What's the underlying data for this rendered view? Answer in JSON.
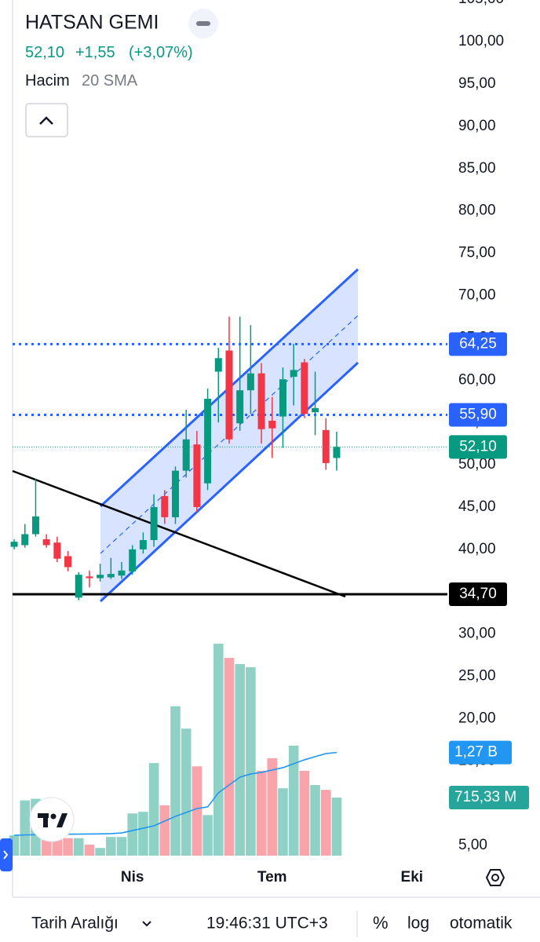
{
  "header": {
    "title": "HATSAN GEMI",
    "price": "52,10",
    "change": "+1,55",
    "change_pct": "(+3,07%)",
    "indicator": "Hacim",
    "indicator_param": "20 SMA"
  },
  "toolbar": {
    "range": "Tarih Aralığı",
    "time": "19:46:31 UTC+3",
    "percent": "%",
    "log": "log",
    "auto": "otomatik"
  },
  "chart_data": {
    "type": "candlestick",
    "up_color": "#089981",
    "down_color": "#f23645",
    "open": [
      40.3,
      40.5,
      41.8,
      41.2,
      40.8,
      39.2,
      34.3,
      36.8,
      36.6,
      36.7,
      36.9,
      37.4,
      40.0,
      41.1,
      46.3,
      43.8,
      49.3,
      52.4,
      47.8,
      61.0,
      63.5,
      54.9,
      58.8,
      60.8,
      55.2,
      55.7,
      60.4,
      62.1,
      56.2,
      54.1,
      50.8
    ],
    "high": [
      41.2,
      43.0,
      48.3,
      41.8,
      41.5,
      39.8,
      37.3,
      37.5,
      38.3,
      39.0,
      38.5,
      40.5,
      42.0,
      46.5,
      47.0,
      49.8,
      56.5,
      54.0,
      59.0,
      63.8,
      67.5,
      67.5,
      66.5,
      62.0,
      58.0,
      61.5,
      64.3,
      62.5,
      61.0,
      55.5,
      53.9
    ],
    "low": [
      40.0,
      40.2,
      41.5,
      40.2,
      38.5,
      37.4,
      34.0,
      35.5,
      36.2,
      36.5,
      36.5,
      37.0,
      39.5,
      40.3,
      43.0,
      43.0,
      48.5,
      44.4,
      47.0,
      55.0,
      52.5,
      54.0,
      56.0,
      52.5,
      50.8,
      52.0,
      57.0,
      55.5,
      53.5,
      49.4,
      49.3
    ],
    "close": [
      40.9,
      41.8,
      43.9,
      40.5,
      38.9,
      37.9,
      37.0,
      36.6,
      37.0,
      37.1,
      37.5,
      40.0,
      41.1,
      45.0,
      43.8,
      49.3,
      53.0,
      45.0,
      57.8,
      62.6,
      53.0,
      58.8,
      60.8,
      54.2,
      54.3,
      60.1,
      61.2,
      56.0,
      56.7,
      50.2,
      52.1
    ],
    "volume": [
      250,
      680,
      700,
      195,
      215,
      215,
      215,
      135,
      95,
      230,
      230,
      520,
      540,
      1140,
      620,
      1840,
      1565,
      1100,
      500,
      2610,
      2435,
      2360,
      2320,
      1045,
      1200,
      830,
      1355,
      1045,
      870,
      810,
      715.33
    ],
    "volume_sma": [
      251,
      255,
      258,
      261,
      262,
      264,
      265,
      266,
      268,
      271,
      280,
      309,
      338,
      367,
      425,
      484,
      532,
      580,
      600,
      774,
      870,
      967,
      1006,
      1025,
      1054,
      1083,
      1132,
      1180,
      1219,
      1257,
      1270
    ],
    "sma_color": "#2196f3",
    "volume_tags": [
      {
        "value": 1270,
        "label": "1,27 B",
        "color": "#2196f3"
      },
      {
        "value": 715.33,
        "label": "715,33 M",
        "color": "#26a69a"
      }
    ],
    "price_lines": [
      {
        "value": 64.25,
        "label": "64,25",
        "color": "#2962ff",
        "style": "dotted"
      },
      {
        "value": 55.9,
        "label": "55,90",
        "color": "#2962ff",
        "style": "dotted"
      },
      {
        "value": 52.1,
        "label": "52,10",
        "color": "#089981",
        "style": "thin"
      },
      {
        "value": 34.7,
        "label": "34,70",
        "color": "#000000",
        "style": "solid"
      }
    ],
    "xlim": [
      -0.15,
      40.3
    ],
    "xticks": [
      {
        "value": 11,
        "label": "Nis"
      },
      {
        "value": 24,
        "label": "Tem"
      },
      {
        "value": 37,
        "label": "Eki"
      }
    ],
    "ylim": [
      2.88,
      104.92
    ],
    "yticks": [
      {
        "value": 5,
        "label": "5,00"
      },
      {
        "value": 10,
        "label": "10,00"
      },
      {
        "value": 15,
        "label": "15,00"
      },
      {
        "value": 20,
        "label": "20,00"
      },
      {
        "value": 25,
        "label": "25,00"
      },
      {
        "value": 30,
        "label": "30,00"
      },
      {
        "value": 35,
        "label": "35,00"
      },
      {
        "value": 40,
        "label": "40,00"
      },
      {
        "value": 45,
        "label": "45,00"
      },
      {
        "value": 50,
        "label": "50,00"
      },
      {
        "value": 55,
        "label": "55,00"
      },
      {
        "value": 60,
        "label": "60,00"
      },
      {
        "value": 65,
        "label": "65,00"
      },
      {
        "value": 70,
        "label": "70,00"
      },
      {
        "value": 75,
        "label": "75,00"
      },
      {
        "value": 80,
        "label": "80,00"
      },
      {
        "value": 85,
        "label": "85,00"
      },
      {
        "value": 90,
        "label": "90,00"
      },
      {
        "value": 95,
        "label": "95,00"
      },
      {
        "value": 100,
        "label": "100,00"
      },
      {
        "value": 105,
        "label": "105,00"
      }
    ],
    "y2lim": [
      0,
      2900
    ]
  }
}
